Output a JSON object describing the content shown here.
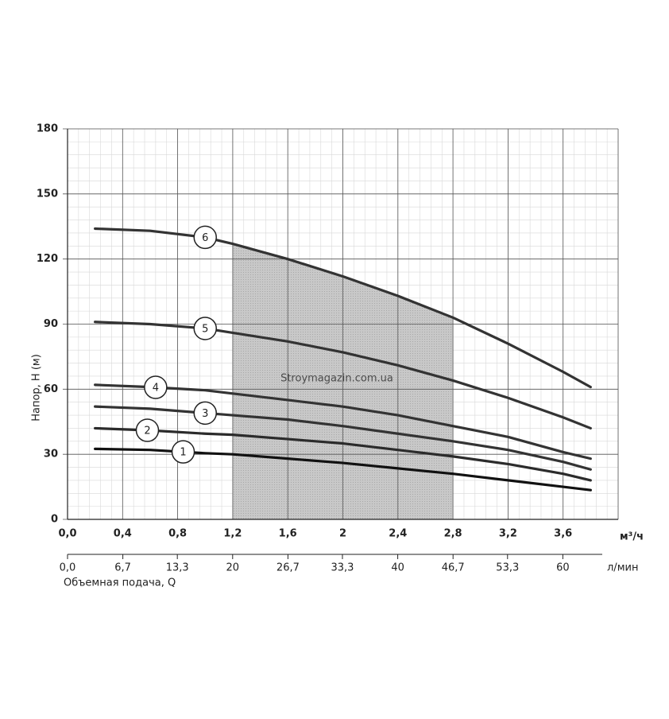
{
  "chart_data": {
    "type": "line",
    "y_label": "Напор, Н (м)",
    "x_label": "Объемная подача, Q",
    "x_unit": "м³/ч",
    "x2_unit": "л/мин",
    "watermark": "Stroymagazin.com.ua",
    "x": [
      0.2,
      0.6,
      1.0,
      1.2,
      1.6,
      2.0,
      2.4,
      2.8,
      3.2,
      3.6,
      3.8
    ],
    "series": [
      {
        "name": "1",
        "color": "#111111",
        "values": [
          32.5,
          32,
          30.5,
          30,
          28,
          26,
          23.5,
          21,
          18,
          15,
          13.5
        ]
      },
      {
        "name": "2",
        "color": "#2b2b2b",
        "values": [
          42,
          41,
          39.5,
          39,
          37,
          35,
          32,
          29,
          25.5,
          21,
          18
        ]
      },
      {
        "name": "3",
        "color": "#333333",
        "values": [
          52,
          51,
          49,
          48,
          46,
          43,
          39.5,
          36,
          32,
          26.5,
          23
        ]
      },
      {
        "name": "4",
        "color": "#333333",
        "values": [
          62,
          61,
          59.5,
          58,
          55,
          52,
          48,
          43,
          38,
          31,
          28
        ]
      },
      {
        "name": "5",
        "color": "#333333",
        "values": [
          91,
          90,
          88,
          86,
          82,
          77,
          71,
          64,
          56,
          47,
          42
        ]
      },
      {
        "name": "6",
        "color": "#333333",
        "values": [
          134,
          133,
          130,
          127,
          120,
          112,
          103,
          93,
          81,
          68,
          61
        ]
      }
    ],
    "shaded_range": [
      1.2,
      2.8
    ],
    "xlim": [
      0,
      4
    ],
    "xticks": [
      {
        "value": 0,
        "label": "0,0"
      },
      {
        "value": 0.4,
        "label": "0,4"
      },
      {
        "value": 0.8,
        "label": "0,8"
      },
      {
        "value": 1.2,
        "label": "1,2"
      },
      {
        "value": 1.6,
        "label": "1,6"
      },
      2,
      {
        "value": 2.4,
        "label": "2,4"
      },
      {
        "value": 2.8,
        "label": "2,8"
      },
      {
        "value": 3.2,
        "label": "3,2"
      },
      {
        "value": 3.6,
        "label": "3,6"
      }
    ],
    "x2lim": [
      0,
      66.7
    ],
    "x2ticks": [
      {
        "value": 0,
        "label": "0,0"
      },
      {
        "value": 6.7,
        "label": "6,7"
      },
      {
        "value": 13.3,
        "label": "13,3"
      },
      20,
      {
        "value": 26.7,
        "label": "26,7"
      },
      {
        "value": 33.3,
        "label": "33,3"
      },
      40,
      {
        "value": 46.7,
        "label": "46,7"
      },
      {
        "value": 53.3,
        "label": "53,3"
      },
      60
    ],
    "ylim": [
      0,
      180
    ],
    "yticks": [
      0,
      30,
      60,
      90,
      120,
      150,
      180
    ],
    "grid": true
  }
}
